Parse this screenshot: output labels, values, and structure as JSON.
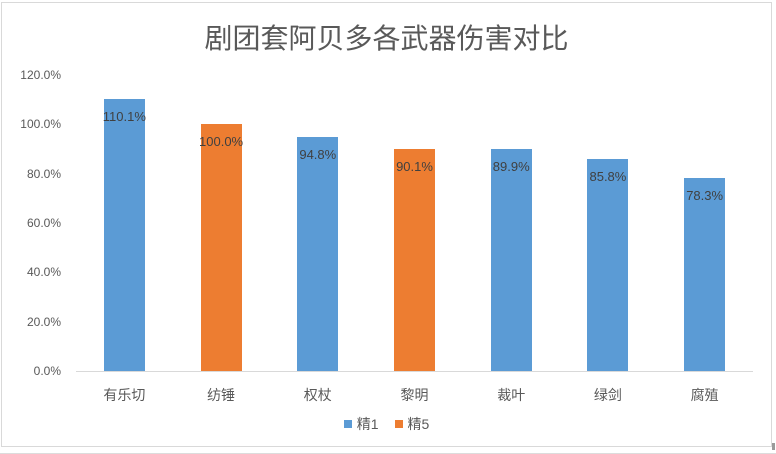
{
  "chart_data": {
    "type": "bar",
    "title": "剧团套阿贝多各武器伤害对比",
    "categories": [
      "有乐切",
      "纺锤",
      "权杖",
      "黎明",
      "裁叶",
      "绿剑",
      "腐殖"
    ],
    "values": [
      110.1,
      100.0,
      94.8,
      90.1,
      89.9,
      85.8,
      78.3
    ],
    "value_labels": [
      "110.1%",
      "100.0%",
      "94.8%",
      "90.1%",
      "89.9%",
      "85.8%",
      "78.3%"
    ],
    "bar_series": [
      "精1",
      "精5",
      "精1",
      "精5",
      "精1",
      "精1",
      "精1"
    ],
    "series_colors": {
      "精1": "#5B9BD5",
      "精5": "#ED7D31"
    },
    "legend": [
      {
        "name": "精1",
        "color": "#5B9BD5"
      },
      {
        "name": "精5",
        "color": "#ED7D31"
      }
    ],
    "legend_position": "bottom",
    "grid": false,
    "xlabel": "",
    "ylabel": "",
    "y_axis": {
      "min": 0,
      "max": 120,
      "step": 20,
      "ticks": [
        "0.0%",
        "20.0%",
        "40.0%",
        "60.0%",
        "80.0%",
        "100.0%",
        "120.0%"
      ]
    }
  },
  "colors": {
    "title_text": "#595959",
    "axis_text": "#595959",
    "data_label_text": "#404040",
    "axis_line": "#d9d9d9",
    "frame_border": "#d9d9d9",
    "background": "#ffffff"
  }
}
